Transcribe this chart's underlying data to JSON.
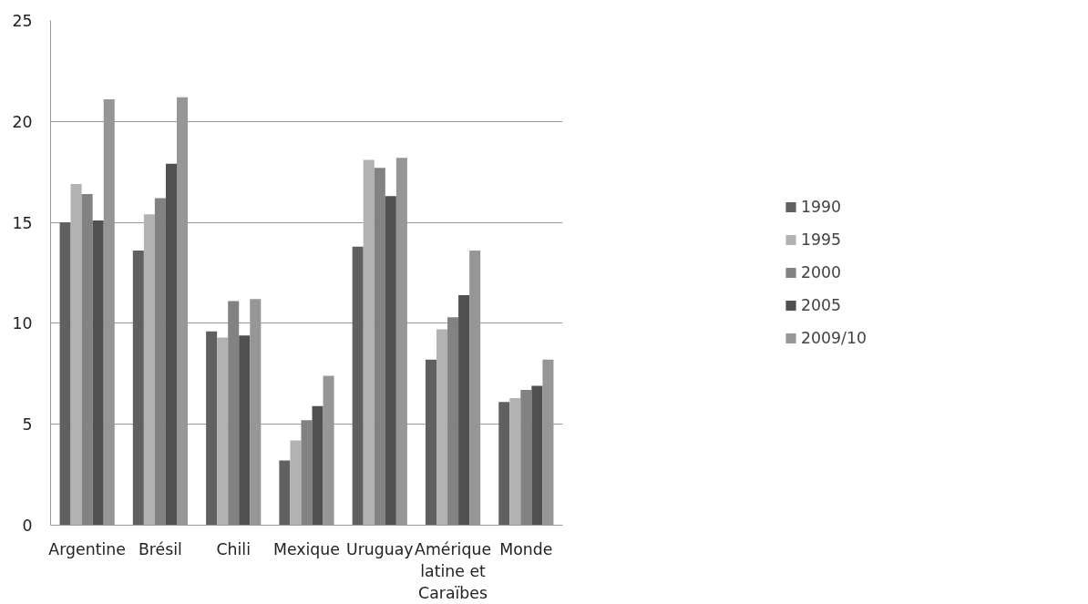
{
  "chart_data": {
    "type": "bar",
    "categories": [
      "Argentine",
      "Brésil",
      "Chili",
      "Mexique",
      "Uruguay",
      "Amérique latine et Caraïbes",
      "Monde"
    ],
    "series": [
      {
        "name": "1990",
        "color": "#606060",
        "values": [
          15.0,
          13.6,
          9.6,
          3.2,
          13.8,
          8.2,
          6.1
        ]
      },
      {
        "name": "1995",
        "color": "#b2b2b2",
        "values": [
          16.9,
          15.4,
          9.3,
          4.2,
          18.1,
          9.7,
          6.3
        ]
      },
      {
        "name": "2000",
        "color": "#828282",
        "values": [
          16.4,
          16.2,
          11.1,
          5.2,
          17.7,
          10.3,
          6.7
        ]
      },
      {
        "name": "2005",
        "color": "#505050",
        "values": [
          15.1,
          17.9,
          9.4,
          5.9,
          16.3,
          11.4,
          6.9
        ]
      },
      {
        "name": "2009/10",
        "color": "#969696",
        "values": [
          21.1,
          21.2,
          11.2,
          7.4,
          18.2,
          13.6,
          8.2
        ]
      }
    ],
    "ylim": [
      0,
      25
    ],
    "yticks": [
      0,
      5,
      10,
      15,
      20,
      25
    ],
    "grid": "y",
    "legend": "right"
  }
}
